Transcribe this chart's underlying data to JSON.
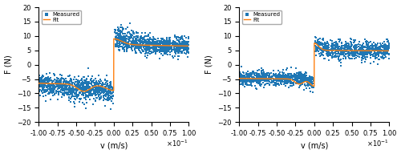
{
  "xlim": [
    -1.0,
    1.0
  ],
  "ylim": [
    -20,
    20
  ],
  "xlabel": "v (m/s)",
  "ylabel": "F (N)",
  "yticks": [
    -20,
    -15,
    -10,
    -5,
    0,
    5,
    10,
    15,
    20
  ],
  "xticks": [
    -1.0,
    -0.75,
    -0.5,
    -0.25,
    0.0,
    0.25,
    0.5,
    0.75,
    1.0
  ],
  "dot_color": "#1f77b4",
  "fit_color": "#ff7f0e",
  "dot_size": 3,
  "legend_measured": "Measured",
  "legend_fit": "Fit",
  "background_color": "#ffffff",
  "seed1": 42,
  "seed2": 99
}
